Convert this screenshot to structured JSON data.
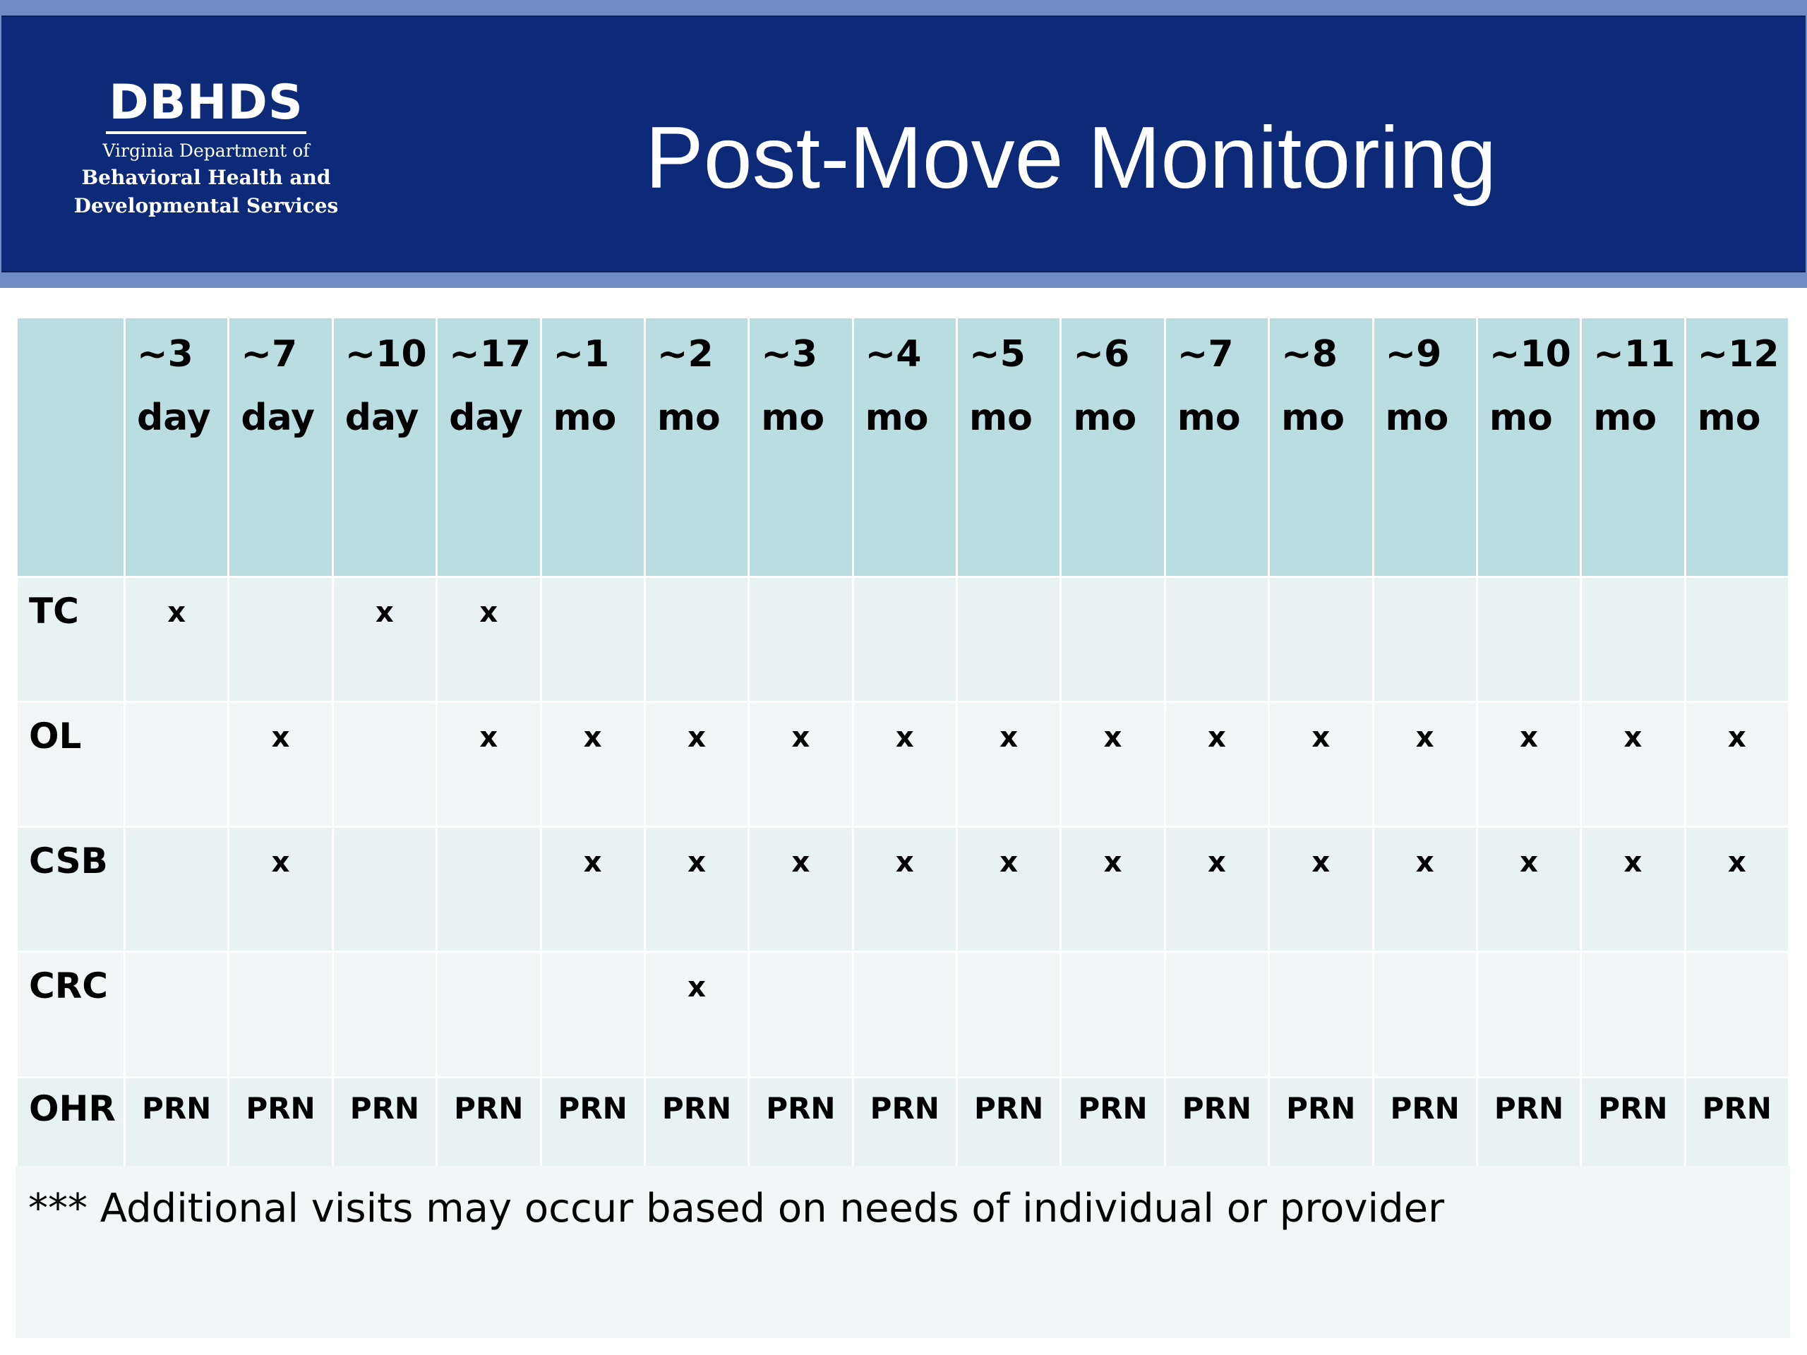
{
  "header": {
    "logo": {
      "mark": "DBHDS",
      "line1": "Virginia  Department  of",
      "line2": "Behavioral Health  and",
      "line3": "Developmental Services"
    },
    "title": "Post-Move Monitoring"
  },
  "table": {
    "columns": [
      {
        "num": "~3",
        "unit": "day"
      },
      {
        "num": "~7",
        "unit": "day"
      },
      {
        "num": "~10",
        "unit": "day"
      },
      {
        "num": "~17",
        "unit": "day"
      },
      {
        "num": "~1",
        "unit": "mo"
      },
      {
        "num": "~2",
        "unit": "mo"
      },
      {
        "num": "~3",
        "unit": "mo"
      },
      {
        "num": "~4",
        "unit": "mo"
      },
      {
        "num": "~5",
        "unit": "mo"
      },
      {
        "num": "~6",
        "unit": "mo"
      },
      {
        "num": "~7",
        "unit": "mo"
      },
      {
        "num": "~8",
        "unit": "mo"
      },
      {
        "num": "~9",
        "unit": "mo"
      },
      {
        "num": "~10",
        "unit": "mo"
      },
      {
        "num": "~11",
        "unit": "mo"
      },
      {
        "num": "~12",
        "unit": "mo"
      }
    ],
    "rows": [
      {
        "label": "TC",
        "cells": [
          "x",
          "",
          "x",
          "x",
          "",
          "",
          "",
          "",
          "",
          "",
          "",
          "",
          "",
          "",
          "",
          ""
        ]
      },
      {
        "label": "OL",
        "cells": [
          "",
          "x",
          "",
          "x",
          "x",
          "x",
          "x",
          "x",
          "x",
          "x",
          "x",
          "x",
          "x",
          "x",
          "x",
          "x"
        ]
      },
      {
        "label": "CSB",
        "cells": [
          "",
          "x",
          "",
          "",
          "x",
          "x",
          "x",
          "x",
          "x",
          "x",
          "x",
          "x",
          "x",
          "x",
          "x",
          "x"
        ]
      },
      {
        "label": "CRC",
        "cells": [
          "",
          "",
          "",
          "",
          "",
          "x",
          "",
          "",
          "",
          "",
          "",
          "",
          "",
          "",
          "",
          ""
        ]
      },
      {
        "label": "OHR",
        "cells": [
          "PRN",
          "PRN",
          "PRN",
          "PRN",
          "PRN",
          "PRN",
          "PRN",
          "PRN",
          "PRN",
          "PRN",
          "PRN",
          "PRN",
          "PRN",
          "PRN",
          "PRN",
          "PRN"
        ]
      }
    ]
  },
  "footnote": "*** Additional visits may occur based on needs of individual or provider",
  "colors": {
    "header_band": "#0c2a78",
    "header_edge": "#6f8bc4",
    "table_header": "#b9dde1",
    "row_odd": "#e8f2f3",
    "row_even": "#f2f6f7"
  }
}
